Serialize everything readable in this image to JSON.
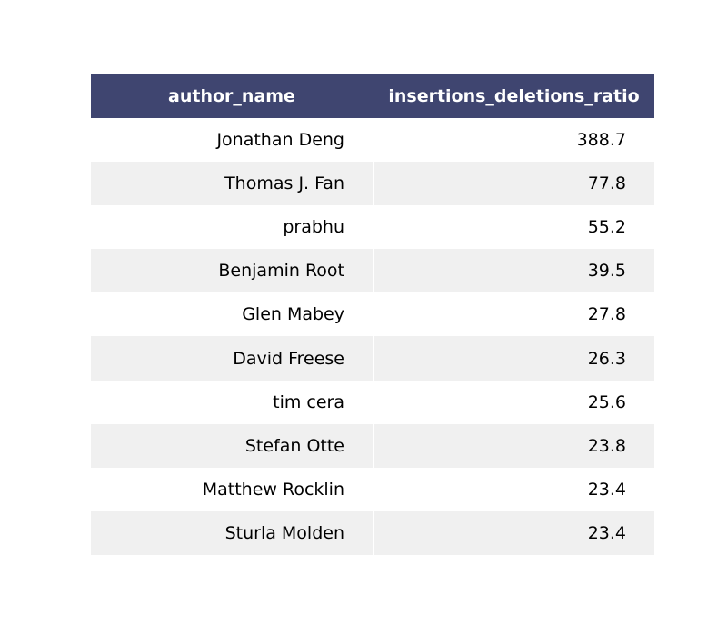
{
  "chart_data": {
    "type": "table",
    "columns": [
      "author_name",
      "insertions_deletions_ratio"
    ],
    "rows": [
      [
        "Jonathan Deng",
        "388.7"
      ],
      [
        "Thomas J. Fan",
        "77.8"
      ],
      [
        "prabhu",
        "55.2"
      ],
      [
        "Benjamin Root",
        "39.5"
      ],
      [
        "Glen Mabey",
        "27.8"
      ],
      [
        "David Freese",
        "26.3"
      ],
      [
        "tim cera",
        "25.6"
      ],
      [
        "Stefan Otte",
        "23.8"
      ],
      [
        "Matthew Rocklin",
        "23.4"
      ],
      [
        "Sturla Molden",
        "23.4"
      ]
    ],
    "colors": {
      "header_bg": "#3f4570",
      "header_text": "#ffffff",
      "row_even": "#ffffff",
      "row_odd": "#f0f0f0"
    }
  }
}
